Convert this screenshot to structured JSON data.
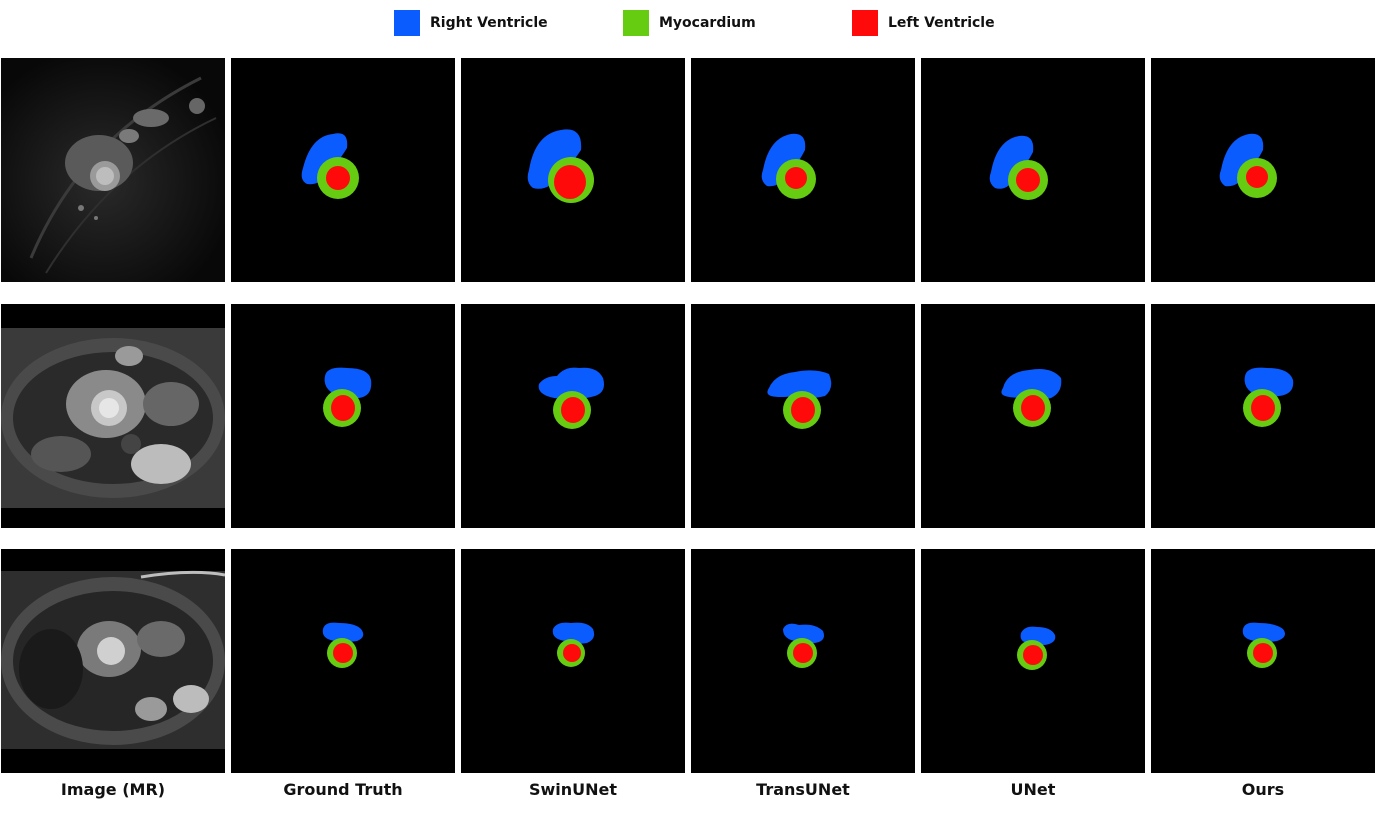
{
  "legend": [
    {
      "label": "Right Ventricle",
      "color": "#0a5cff"
    },
    {
      "label": "Myocardium",
      "color": "#66cc11"
    },
    {
      "label": "Left Ventricle",
      "color": "#ff0a0a"
    }
  ],
  "columns": [
    {
      "label": "Image (MR)"
    },
    {
      "label": "Ground Truth"
    },
    {
      "label": "SwinUNet"
    },
    {
      "label": "TransUNet"
    },
    {
      "label": "UNet"
    },
    {
      "label": "Ours"
    }
  ],
  "colors": {
    "background": "#000000",
    "right_ventricle": "#0a5cff",
    "myocardium": "#66cc11",
    "left_ventricle": "#ff0a0a"
  }
}
